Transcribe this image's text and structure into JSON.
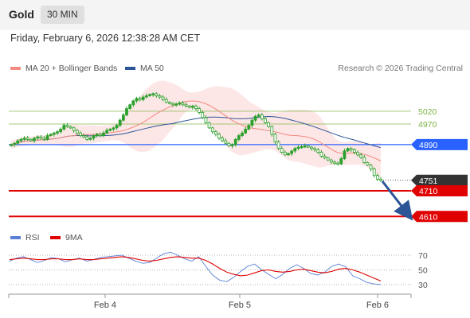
{
  "header": {
    "symbol": "Gold",
    "timeframe": "30 MIN"
  },
  "datetime": "Friday, February 6, 2026 12:38:28 AM CET",
  "legend": {
    "ma20": {
      "label": "MA 20 + Bollinger Bands",
      "color": "#f28b82"
    },
    "ma50": {
      "label": "MA 50",
      "color": "#2b5597"
    }
  },
  "credit": "Research © 2026 Trading Central",
  "rsi_legend": {
    "rsi": {
      "label": "RSI",
      "color": "#5a7fd6"
    },
    "ma9": {
      "label": "9MA",
      "color": "#e00000"
    }
  },
  "colors": {
    "candle": "#2ca02c",
    "resistance": "#7cb342",
    "support": "#e00000",
    "pivot": "#2962ff",
    "current": "#333333",
    "arrow": "#2b5597"
  },
  "chart_data": [
    {
      "type": "candlestick",
      "x_ticks": [
        "Feb 4",
        "Feb 5",
        "Feb 6"
      ],
      "y_range": [
        4520,
        5140
      ],
      "levels": [
        {
          "value": 5020,
          "label": "5020",
          "kind": "resistance"
        },
        {
          "value": 4970,
          "label": "4970",
          "kind": "resistance"
        },
        {
          "value": 4890,
          "label": "4890",
          "kind": "pivot"
        },
        {
          "value": 4751,
          "label": "4751",
          "kind": "current"
        },
        {
          "value": 4710,
          "label": "4710",
          "kind": "support"
        },
        {
          "value": 4610,
          "label": "4610",
          "kind": "support"
        }
      ],
      "close": [
        4890,
        4895,
        4905,
        4910,
        4915,
        4910,
        4905,
        4915,
        4920,
        4915,
        4910,
        4925,
        4930,
        4935,
        4940,
        4950,
        4965,
        4960,
        4955,
        4945,
        4935,
        4925,
        4920,
        4910,
        4915,
        4925,
        4930,
        4925,
        4935,
        4945,
        4950,
        4955,
        4965,
        4985,
        5005,
        5030,
        5045,
        5060,
        5070,
        5065,
        5075,
        5080,
        5085,
        5088,
        5080,
        5075,
        5065,
        5055,
        5050,
        5045,
        5048,
        5052,
        5045,
        5040,
        5035,
        5040,
        5030,
        5015,
        4995,
        4975,
        4955,
        4940,
        4930,
        4915,
        4905,
        4895,
        4885,
        4890,
        4910,
        4925,
        4935,
        4950,
        4965,
        4985,
        5000,
        5005,
        4990,
        4975,
        4960,
        4930,
        4900,
        4875,
        4860,
        4850,
        4855,
        4865,
        4875,
        4880,
        4882,
        4885,
        4880,
        4875,
        4870,
        4860,
        4845,
        4838,
        4830,
        4822,
        4818,
        4815,
        4835,
        4865,
        4875,
        4870,
        4860,
        4850,
        4840,
        4820,
        4810,
        4795,
        4770,
        4755,
        4751
      ]
    },
    {
      "type": "line",
      "name": "RSI",
      "y_ticks": [
        70,
        50,
        30
      ],
      "series": [
        {
          "name": "RSI",
          "values": [
            62,
            66,
            68,
            64,
            60,
            63,
            67,
            65,
            61,
            64,
            66,
            62,
            64,
            67,
            68,
            69,
            70,
            66,
            62,
            59,
            60,
            66,
            72,
            74,
            70,
            65,
            62,
            68,
            55,
            43,
            36,
            34,
            40,
            48,
            55,
            58,
            50,
            44,
            38,
            44,
            52,
            57,
            52,
            45,
            43,
            47,
            55,
            58,
            54,
            42,
            38,
            33,
            31,
            30
          ]
        },
        {
          "name": "9MA",
          "values": [
            64,
            65,
            66,
            65,
            64,
            64,
            65,
            65,
            64,
            64,
            65,
            64,
            64,
            65,
            66,
            67,
            68,
            67,
            65,
            63,
            62,
            63,
            65,
            67,
            68,
            67,
            66,
            66,
            63,
            58,
            52,
            47,
            44,
            42,
            43,
            46,
            49,
            50,
            48,
            47,
            48,
            50,
            51,
            49,
            47,
            46,
            48,
            51,
            52,
            50,
            47,
            43,
            39,
            35
          ]
        }
      ]
    }
  ]
}
